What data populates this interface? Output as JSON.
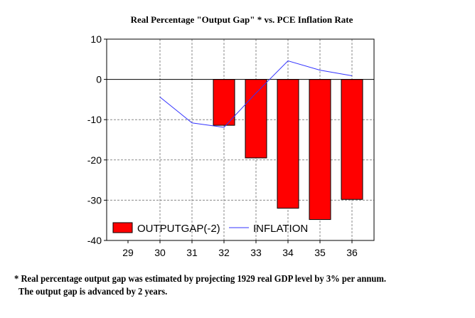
{
  "chart_data": {
    "type": "bar",
    "title": "Real Percentage \"Output Gap\" * vs. PCE Inflation Rate",
    "categories": [
      "29",
      "30",
      "31",
      "32",
      "33",
      "34",
      "35",
      "36"
    ],
    "ylim": [
      -40,
      10
    ],
    "yticks": [
      10,
      0,
      -10,
      -20,
      -30,
      -40
    ],
    "grid": true,
    "legend_placement": "bottom-left",
    "series": [
      {
        "name": "OUTPUTGAP(-2)",
        "kind": "bar",
        "color": "#ff0000",
        "values": [
          null,
          null,
          null,
          -11.4,
          -19.5,
          -32.0,
          -34.8,
          -29.8
        ]
      },
      {
        "name": "INFLATION",
        "kind": "line",
        "color": "#3333ff",
        "values": [
          null,
          -4.4,
          -10.8,
          -11.9,
          -3.4,
          4.6,
          2.3,
          0.9
        ]
      }
    ]
  },
  "footnote": {
    "line1": "* Real percentage output gap was estimated by projecting 1929 real GDP level by 3%  per annum.",
    "line2": "The output gap is advanced by 2 years."
  }
}
